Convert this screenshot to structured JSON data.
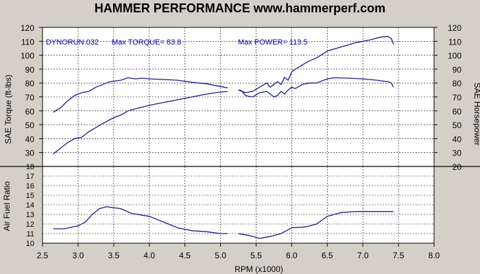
{
  "chart_data": [
    {
      "type": "line",
      "title": "HAMMER PERFORMANCE www.hammerperf.com",
      "ylabel": "SAE Torque (ft-lbs)",
      "y2label": "SAE Horsepower",
      "xlim": [
        2.5,
        8.0
      ],
      "ylim": [
        20,
        120
      ],
      "grid": true,
      "annotations": {
        "run": "DYNORUN.032",
        "max_torque": "Max TORQUE= 83.8",
        "max_power": "Max POWER= 113.5"
      },
      "series": [
        {
          "name": "Torque",
          "color": "#1a1a8c",
          "points": [
            [
              2.65,
              59
            ],
            [
              2.75,
              62
            ],
            [
              2.85,
              67
            ],
            [
              2.95,
              71
            ],
            [
              3.05,
              73
            ],
            [
              3.15,
              74
            ],
            [
              3.25,
              77
            ],
            [
              3.35,
              79
            ],
            [
              3.45,
              81
            ],
            [
              3.6,
              82
            ],
            [
              3.7,
              83.8
            ],
            [
              3.8,
              83
            ],
            [
              3.9,
              83.5
            ],
            [
              4.0,
              83
            ],
            [
              4.2,
              82.5
            ],
            [
              4.4,
              82
            ],
            [
              4.6,
              80.5
            ],
            [
              4.8,
              79.5
            ],
            [
              5.0,
              77.5
            ],
            [
              5.1,
              76.5
            ],
            null,
            [
              5.25,
              75
            ],
            [
              5.3,
              74.5
            ],
            [
              5.35,
              71
            ],
            [
              5.45,
              70
            ],
            [
              5.55,
              73
            ],
            [
              5.65,
              74
            ],
            [
              5.75,
              70
            ],
            [
              5.8,
              71
            ],
            [
              5.85,
              74
            ],
            [
              5.9,
              72
            ],
            [
              5.95,
              75
            ],
            [
              6.0,
              77
            ],
            [
              6.05,
              76
            ],
            [
              6.15,
              79
            ],
            [
              6.25,
              80
            ],
            [
              6.35,
              80
            ],
            [
              6.5,
              83
            ],
            [
              6.6,
              83.8
            ],
            [
              6.8,
              83.5
            ],
            [
              7.0,
              83
            ],
            [
              7.2,
              82
            ],
            [
              7.35,
              81
            ],
            [
              7.4,
              80
            ],
            [
              7.43,
              77
            ]
          ]
        },
        {
          "name": "Power",
          "color": "#1a1a8c",
          "points": [
            [
              2.65,
              29
            ],
            [
              2.75,
              33
            ],
            [
              2.85,
              37
            ],
            [
              2.95,
              40
            ],
            [
              3.05,
              41
            ],
            [
              3.15,
              45
            ],
            [
              3.25,
              48
            ],
            [
              3.35,
              51
            ],
            [
              3.5,
              55
            ],
            [
              3.6,
              57
            ],
            [
              3.7,
              60
            ],
            [
              3.85,
              62
            ],
            [
              4.0,
              64
            ],
            [
              4.2,
              66
            ],
            [
              4.4,
              68
            ],
            [
              4.6,
              70
            ],
            [
              4.8,
              72
            ],
            [
              5.0,
              73.5
            ],
            [
              5.1,
              74
            ],
            null,
            [
              5.25,
              75
            ],
            [
              5.35,
              73
            ],
            [
              5.45,
              74
            ],
            [
              5.55,
              77
            ],
            [
              5.65,
              80
            ],
            [
              5.7,
              77
            ],
            [
              5.8,
              81
            ],
            [
              5.85,
              79
            ],
            [
              5.9,
              84
            ],
            [
              5.95,
              82
            ],
            [
              6.0,
              88
            ],
            [
              6.05,
              90
            ],
            [
              6.15,
              93
            ],
            [
              6.25,
              96
            ],
            [
              6.35,
              98
            ],
            [
              6.5,
              103
            ],
            [
              6.7,
              106
            ],
            [
              6.9,
              109
            ],
            [
              7.1,
              111
            ],
            [
              7.25,
              113
            ],
            [
              7.35,
              113.5
            ],
            [
              7.4,
              112
            ],
            [
              7.43,
              108
            ]
          ]
        }
      ]
    },
    {
      "type": "line",
      "xlabel": "RPM (x1000)",
      "ylabel": "Air Fuel Ratio",
      "xlim": [
        2.5,
        8.0
      ],
      "ylim": [
        10,
        18
      ],
      "x_ticks": [
        "2.5",
        "3.0",
        "3.5",
        "4.0",
        "4.5",
        "5.0",
        "5.5",
        "6.0",
        "6.5",
        "7.0",
        "7.5",
        "8.0"
      ],
      "grid": true,
      "series": [
        {
          "name": "AFR",
          "color": "#1a1a8c",
          "points": [
            [
              2.65,
              11.5
            ],
            [
              2.8,
              11.5
            ],
            [
              3.0,
              11.8
            ],
            [
              3.1,
              12.2
            ],
            [
              3.2,
              13.0
            ],
            [
              3.3,
              13.6
            ],
            [
              3.4,
              13.8
            ],
            [
              3.6,
              13.6
            ],
            [
              3.75,
              13.1
            ],
            [
              4.0,
              12.8
            ],
            [
              4.2,
              12.2
            ],
            [
              4.4,
              11.6
            ],
            [
              4.6,
              11.3
            ],
            [
              4.8,
              11.2
            ],
            [
              5.0,
              11.0
            ],
            [
              5.1,
              11.0
            ],
            null,
            [
              5.25,
              11.0
            ],
            [
              5.4,
              10.8
            ],
            [
              5.55,
              10.5
            ],
            [
              5.7,
              10.7
            ],
            [
              5.85,
              11.0
            ],
            [
              6.0,
              11.6
            ],
            [
              6.2,
              11.7
            ],
            [
              6.35,
              12.0
            ],
            [
              6.5,
              12.8
            ],
            [
              6.7,
              13.2
            ],
            [
              6.9,
              13.3
            ],
            [
              7.2,
              13.3
            ],
            [
              7.43,
              13.3
            ]
          ]
        }
      ]
    }
  ]
}
